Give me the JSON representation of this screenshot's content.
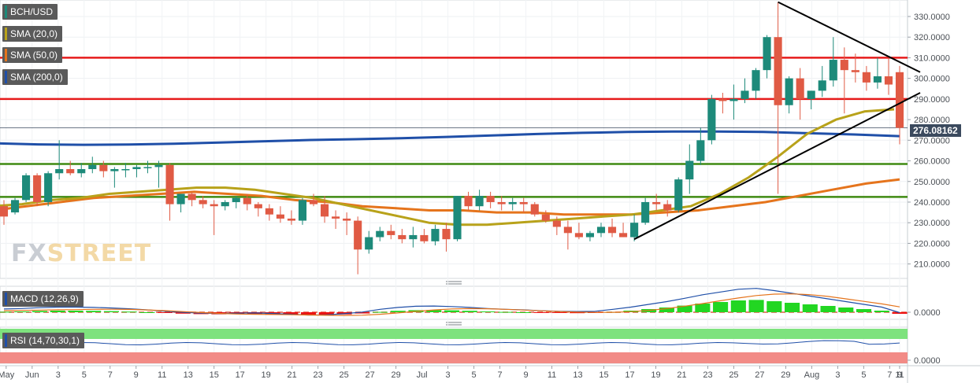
{
  "legend": {
    "symbol": "BCH/USD",
    "sma20": "SMA (20,0)",
    "sma50": "SMA (50,0)",
    "sma200": "SMA (200,0)",
    "macd": "MACD (12,26,9)",
    "rsi": "RSI (14,70,30,1)"
  },
  "colors": {
    "up": "#1d8a7a",
    "down": "#e05a44",
    "sma20": "#b8a21a",
    "sma50": "#e5741c",
    "sma200": "#1f4fa8",
    "resistance": "#e61b1b",
    "support": "#3f8a12",
    "trend": "#000000"
  },
  "watermark": {
    "fx": "FX",
    "street": "STREET"
  },
  "current_price_label": "276.08162",
  "chart_data": [
    {
      "type": "candlestick",
      "title": "BCH/USD",
      "xlabel": "",
      "ylabel": "",
      "x_tick_labels": [
        "May",
        "Jun",
        "3",
        "5",
        "7",
        "9",
        "11",
        "13",
        "15",
        "17",
        "19",
        "21",
        "23",
        "25",
        "27",
        "29",
        "Jul",
        "3",
        "5",
        "7",
        "9",
        "11",
        "13",
        "15",
        "17",
        "19",
        "21",
        "23",
        "25",
        "27",
        "29",
        "Aug",
        "3",
        "5",
        "7",
        "9",
        "11"
      ],
      "y_tick_labels": [
        "210.0000",
        "220.0000",
        "230.0000",
        "240.0000",
        "250.0000",
        "260.0000",
        "270.0000",
        "280.0000",
        "290.0000",
        "300.0000",
        "310.0000",
        "320.0000",
        "330.0000"
      ],
      "ylim": [
        203,
        338
      ],
      "current_price": 276.08162,
      "candles": [
        [
          238,
          241,
          229,
          233
        ],
        [
          235,
          242,
          234,
          241
        ],
        [
          241,
          254,
          240,
          253
        ],
        [
          253,
          254,
          238,
          240
        ],
        [
          240,
          255,
          238,
          254
        ],
        [
          254,
          270,
          251,
          256
        ],
        [
          256,
          260,
          253,
          254
        ],
        [
          254,
          259,
          252,
          256
        ],
        [
          256,
          262,
          254,
          258
        ],
        [
          258,
          260,
          252,
          255
        ],
        [
          255,
          257,
          247,
          256
        ],
        [
          256,
          259,
          252,
          256
        ],
        [
          256,
          258,
          252,
          257
        ],
        [
          257,
          260,
          254,
          257
        ],
        [
          257,
          260,
          247,
          258
        ],
        [
          258,
          259,
          231,
          239
        ],
        [
          239,
          243,
          235,
          244
        ],
        [
          244,
          245,
          238,
          241
        ],
        [
          241,
          243,
          237,
          239
        ],
        [
          239,
          241,
          224,
          238
        ],
        [
          238,
          241,
          236,
          240
        ],
        [
          240,
          243,
          237,
          242
        ],
        [
          242,
          244,
          236,
          239
        ],
        [
          239,
          240,
          233,
          237
        ],
        [
          237,
          239,
          231,
          234
        ],
        [
          234,
          238,
          230,
          232
        ],
        [
          232,
          236,
          229,
          231
        ],
        [
          231,
          242,
          229,
          241
        ],
        [
          241,
          244,
          238,
          239
        ],
        [
          239,
          243,
          230,
          233
        ],
        [
          233,
          236,
          227,
          232
        ],
        [
          232,
          235,
          224,
          231
        ],
        [
          231,
          233,
          205,
          217
        ],
        [
          217,
          226,
          215,
          223
        ],
        [
          223,
          228,
          221,
          226
        ],
        [
          226,
          229,
          222,
          224
        ],
        [
          224,
          227,
          220,
          222
        ],
        [
          222,
          228,
          218,
          224
        ],
        [
          224,
          227,
          220,
          221
        ],
        [
          221,
          229,
          219,
          227
        ],
        [
          227,
          230,
          216,
          222
        ],
        [
          222,
          243,
          221,
          243
        ],
        [
          243,
          245,
          236,
          238
        ],
        [
          238,
          246,
          236,
          243
        ],
        [
          243,
          245,
          237,
          240
        ],
        [
          240,
          243,
          236,
          239
        ],
        [
          239,
          242,
          236,
          240
        ],
        [
          240,
          242,
          235,
          239
        ],
        [
          239,
          240,
          233,
          234
        ],
        [
          234,
          236,
          230,
          231
        ],
        [
          231,
          233,
          224,
          228
        ],
        [
          228,
          231,
          217,
          225
        ],
        [
          225,
          230,
          222,
          223
        ],
        [
          223,
          226,
          221,
          225
        ],
        [
          225,
          230,
          223,
          228
        ],
        [
          228,
          232,
          223,
          225
        ],
        [
          225,
          230,
          223,
          223
        ],
        [
          223,
          234,
          221,
          230
        ],
        [
          230,
          242,
          229,
          240
        ],
        [
          240,
          244,
          236,
          239
        ],
        [
          239,
          241,
          233,
          236
        ],
        [
          236,
          252,
          235,
          251
        ],
        [
          251,
          268,
          244,
          260
        ],
        [
          260,
          276,
          258,
          270
        ],
        [
          270,
          292,
          268,
          290
        ],
        [
          290,
          293,
          283,
          289
        ],
        [
          289,
          297,
          280,
          290
        ],
        [
          290,
          300,
          288,
          294
        ],
        [
          294,
          305,
          290,
          304
        ],
        [
          304,
          321,
          300,
          320
        ],
        [
          320,
          337,
          244,
          287
        ],
        [
          287,
          301,
          283,
          300
        ],
        [
          300,
          305,
          280,
          290
        ],
        [
          290,
          294,
          285,
          294
        ],
        [
          294,
          306,
          291,
          299
        ],
        [
          299,
          320,
          296,
          309
        ],
        [
          309,
          315,
          283,
          304
        ],
        [
          304,
          312,
          298,
          303
        ],
        [
          303,
          306,
          294,
          298
        ],
        [
          298,
          310,
          295,
          301
        ],
        [
          301,
          310,
          292,
          297
        ],
        [
          303,
          306,
          268,
          276
        ]
      ],
      "sma20": [
        238,
        239,
        241,
        242,
        244,
        245,
        246,
        247,
        247,
        246,
        244,
        242,
        239,
        236,
        233,
        230,
        229,
        229,
        230,
        231,
        232,
        233,
        234,
        236,
        238,
        244,
        252,
        262,
        273,
        280,
        284,
        285
      ],
      "sma50": [
        236,
        238,
        240,
        242,
        243,
        244,
        245,
        244,
        243,
        241,
        240,
        238,
        237,
        236,
        236,
        235,
        235,
        234,
        234,
        234,
        235,
        236,
        238,
        240,
        243,
        246,
        249,
        251
      ],
      "sma200": [
        268.5,
        268.0,
        267.8,
        267.9,
        268.3,
        268.9,
        269.5,
        270.1,
        270.5,
        271.0,
        271.6,
        272.3,
        273.0,
        273.6,
        274.0,
        274.2,
        274.2,
        274.0,
        273.4,
        272.8,
        272.0
      ],
      "horizontal_lines": {
        "resistance": [
          310,
          290
        ],
        "support": [
          258.5,
          242.5
        ]
      },
      "trendlines": [
        {
          "from": [
            "Jul 21",
            222
          ],
          "to": [
            "Aug 11",
            293
          ]
        },
        {
          "from": [
            "Aug 2",
            337
          ],
          "to": [
            "Aug 11",
            303
          ]
        }
      ]
    },
    {
      "type": "bar",
      "title": "MACD (12,26,9)",
      "y_tick_labels": [
        "0.0000"
      ],
      "histogram": [
        0.3,
        0.5,
        0.8,
        1.0,
        1.0,
        0.9,
        0.7,
        0.4,
        0.0,
        -0.5,
        -0.9,
        -1.2,
        -1.3,
        -1.2,
        -1.1,
        -1.3,
        -1.6,
        -1.9,
        -1.8,
        -1.4,
        -0.8,
        0.2,
        0.9,
        1.3,
        1.4,
        1.2,
        0.9,
        0.5,
        0.2,
        0.0,
        -0.3,
        -0.5,
        -0.6,
        -0.5,
        0.2,
        1.0,
        2.0,
        3.0,
        4.2,
        5.5,
        6.5,
        7.5,
        7.8,
        7.0,
        6.0,
        5.0,
        4.0,
        3.0,
        2.0,
        1.0,
        -1.0
      ]
    },
    {
      "type": "line",
      "title": "RSI (14,70,30,1)",
      "y_tick_labels": [
        "0.0000"
      ]
    }
  ]
}
